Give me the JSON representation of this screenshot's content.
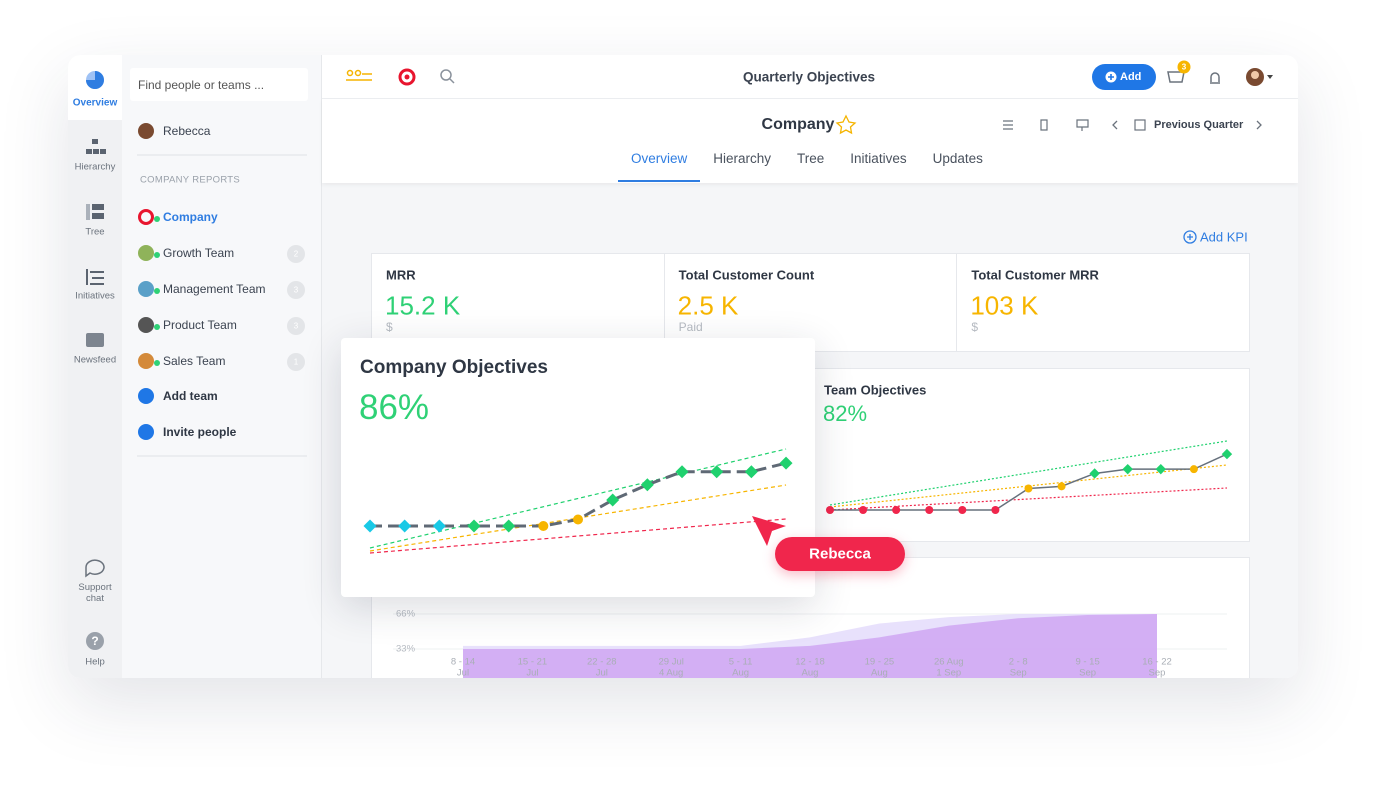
{
  "rail": {
    "items": [
      {
        "label": "Overview"
      },
      {
        "label": "Hierarchy"
      },
      {
        "label": "Tree"
      },
      {
        "label": "Initiatives"
      },
      {
        "label": "Newsfeed"
      }
    ],
    "active": 0,
    "bottom": [
      {
        "label": "Support chat"
      },
      {
        "label": "Help",
        "icon": "?"
      }
    ]
  },
  "sidebar": {
    "search_placeholder": "Find people or teams ...",
    "user": "Rebecca",
    "section": "COMPANY REPORTS",
    "active": 0,
    "teams": [
      {
        "name": "Company"
      },
      {
        "name": "Growth Team",
        "count": 2
      },
      {
        "name": "Management Team",
        "count": 3
      },
      {
        "name": "Product Team",
        "count": 3
      },
      {
        "name": "Sales Team",
        "count": 1
      }
    ],
    "actions": [
      "Add team",
      "Invite people"
    ]
  },
  "topbar": {
    "title": "Quarterly Objectives",
    "add_button": "Add",
    "cart_badge": 3
  },
  "header": {
    "title": "Company",
    "period": "Previous Quarter",
    "tabs": [
      "Overview",
      "Hierarchy",
      "Tree",
      "Initiatives",
      "Updates"
    ],
    "active_tab": 0
  },
  "add_kpi": "Add KPI",
  "kpis": [
    {
      "label": "MRR",
      "value": "15.2 K",
      "unit": "$",
      "color": "#2fd176"
    },
    {
      "label": "Total Customer Count",
      "value": "2.5 K",
      "unit": "Paid",
      "color": "#f7b500"
    },
    {
      "label": "Total Customer MRR",
      "value": "103 K",
      "unit": "$",
      "color": "#f7b500"
    }
  ],
  "company_objectives": {
    "title": "Company Objectives",
    "value": "86%",
    "value_color": "#2fd176",
    "chart": {
      "type": "line",
      "values": [
        20,
        20,
        20,
        20,
        20,
        20,
        23,
        32,
        39,
        45,
        45,
        45,
        49
      ],
      "colors": [
        "#19c9e6",
        "#19c9e6",
        "#19c9e6",
        "#1fd16e",
        "#1fd16e",
        "#f7b500",
        "#f7b500",
        "#1fd16e",
        "#1fd16e",
        "#1fd16e",
        "#1fd16e",
        "#1fd16e",
        "#1fd16e"
      ]
    }
  },
  "team_objectives": {
    "title": "Team Objectives",
    "value": "82%",
    "value_color": "#2fd176",
    "chart": {
      "type": "line",
      "values": [
        0,
        0,
        0,
        0,
        0,
        0,
        10,
        11,
        17,
        19,
        19,
        19,
        26
      ],
      "colors": [
        "#f0264c",
        "#f0264c",
        "#f0264c",
        "#f0264c",
        "#f0264c",
        "#f0264c",
        "#f7b500",
        "#f7b500",
        "#1fd16e",
        "#1fd16e",
        "#1fd16e",
        "#f7b500",
        "#1fd16e"
      ]
    }
  },
  "progress_chart": {
    "type": "area",
    "categories": [
      [
        "8 - 14",
        "Jul"
      ],
      [
        "15 - 21",
        "Jul"
      ],
      [
        "22 - 28",
        "Jul"
      ],
      [
        "29 Jul",
        "4 Aug"
      ],
      [
        "5 - 11",
        "Aug"
      ],
      [
        "12 - 18",
        "Aug"
      ],
      [
        "19 - 25",
        "Aug"
      ],
      [
        "26 Aug",
        "1 Sep"
      ],
      [
        "2 - 8",
        "Sep"
      ],
      [
        "9 - 15",
        "Sep"
      ],
      [
        "16 - 22",
        "Sep"
      ]
    ],
    "yticks": [
      {
        "value": 66,
        "label": "66%"
      },
      {
        "value": 33,
        "label": "33%"
      }
    ],
    "series": [
      {
        "color": "#e4dcfb",
        "values": [
          36,
          36,
          36,
          36,
          36,
          44,
          57,
          63,
          66,
          66,
          66
        ]
      },
      {
        "color": "#cfa6f2",
        "values": [
          33,
          33,
          33,
          33,
          33,
          36,
          44,
          55,
          62,
          65,
          66
        ]
      }
    ]
  },
  "cursor": {
    "label": "Rebecca"
  }
}
